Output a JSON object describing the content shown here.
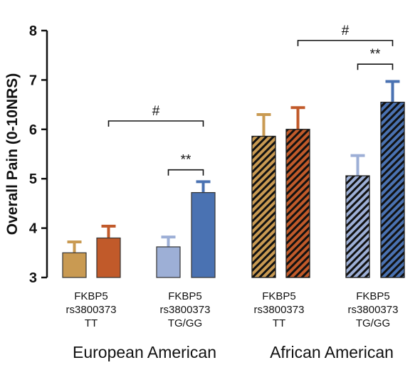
{
  "chart_data": {
    "type": "bar",
    "ylabel": "Overall Pain (0-10NRS)",
    "ylim": [
      3,
      8
    ],
    "yticks": [
      "3",
      "4",
      "5",
      "6",
      "7",
      "8"
    ],
    "grid": false,
    "group_labels": [
      [
        "FKBP5",
        "rs3800373",
        "TT"
      ],
      [
        "FKBP5",
        "rs3800373",
        "TG/GG"
      ],
      [
        "FKBP5",
        "rs3800373",
        "TT"
      ],
      [
        "FKBP5",
        "rs3800373",
        "TG/GG"
      ]
    ],
    "population_labels": [
      "European American",
      "African American"
    ],
    "bars": [
      {
        "group": 0,
        "value": 3.5,
        "error": 0.22,
        "color": "#C99A52",
        "hatched": false
      },
      {
        "group": 0,
        "value": 3.8,
        "error": 0.24,
        "color": "#C15A2A",
        "hatched": false
      },
      {
        "group": 1,
        "value": 3.62,
        "error": 0.2,
        "color": "#9DAFD6",
        "hatched": false
      },
      {
        "group": 1,
        "value": 4.72,
        "error": 0.22,
        "color": "#4A72B2",
        "hatched": false
      },
      {
        "group": 2,
        "value": 5.86,
        "error": 0.44,
        "color": "#C99A52",
        "hatched": true
      },
      {
        "group": 2,
        "value": 6.0,
        "error": 0.44,
        "color": "#C15A2A",
        "hatched": true
      },
      {
        "group": 3,
        "value": 5.06,
        "error": 0.41,
        "color": "#9DAFD6",
        "hatched": true
      },
      {
        "group": 3,
        "value": 6.55,
        "error": 0.42,
        "color": "#4A72B2",
        "hatched": true
      }
    ],
    "annotations": [
      {
        "label": "#",
        "from_bar": 1,
        "to_bar": 3,
        "y": 6.17
      },
      {
        "label": "**",
        "from_bar": 2,
        "to_bar": 3,
        "y": 5.18
      },
      {
        "label": "#",
        "from_bar": 5,
        "to_bar": 7,
        "y": 7.8
      },
      {
        "label": "**",
        "from_bar": 6,
        "to_bar": 7,
        "y": 7.32
      }
    ]
  }
}
